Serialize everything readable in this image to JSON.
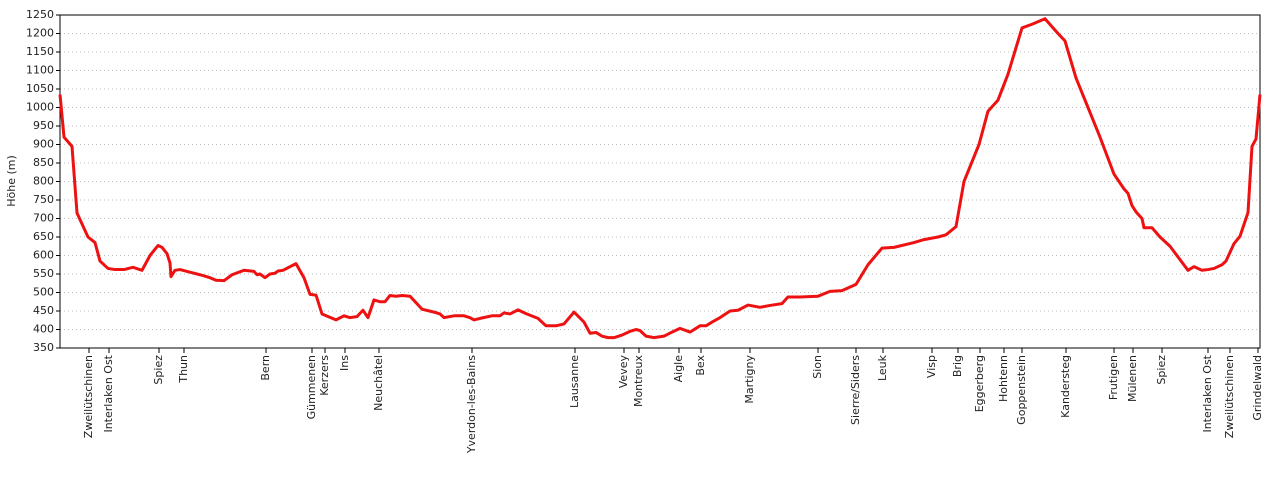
{
  "chart_data": {
    "type": "line",
    "y_label": "Höhe (m)",
    "ylim": [
      350,
      1250
    ],
    "yticks": [
      350,
      400,
      450,
      500,
      550,
      600,
      650,
      700,
      750,
      800,
      850,
      900,
      950,
      1000,
      1050,
      1100,
      1150,
      1200,
      1250
    ],
    "grid": true,
    "xlim": [
      60,
      1260
    ],
    "xticks": [
      {
        "value": 89,
        "label": "Zweilütschinen"
      },
      {
        "value": 109,
        "label": "Interlaken Ost"
      },
      {
        "value": 159,
        "label": "Spiez"
      },
      {
        "value": 184,
        "label": "Thun"
      },
      {
        "value": 266,
        "label": "Bern"
      },
      {
        "value": 312,
        "label": "Gümmenen"
      },
      {
        "value": 325,
        "label": "Kerzers"
      },
      {
        "value": 345,
        "label": "Ins"
      },
      {
        "value": 379,
        "label": "Neuchâtel"
      },
      {
        "value": 472,
        "label": "Yverdon-les-Bains"
      },
      {
        "value": 575,
        "label": "Lausanne"
      },
      {
        "value": 624,
        "label": "Vevey"
      },
      {
        "value": 639,
        "label": "Montreux"
      },
      {
        "value": 679,
        "label": "Aigle"
      },
      {
        "value": 701,
        "label": "Bex"
      },
      {
        "value": 750,
        "label": "Martigny"
      },
      {
        "value": 818,
        "label": "Sion"
      },
      {
        "value": 856,
        "label": "Sierre/Siders"
      },
      {
        "value": 883,
        "label": "Leuk"
      },
      {
        "value": 932,
        "label": "Visp"
      },
      {
        "value": 958,
        "label": "Brig"
      },
      {
        "value": 980,
        "label": "Eggerberg"
      },
      {
        "value": 1004,
        "label": "Hohtenn"
      },
      {
        "value": 1022,
        "label": "Goppenstein"
      },
      {
        "value": 1066,
        "label": "Kandersteg"
      },
      {
        "value": 1114,
        "label": "Frutigen"
      },
      {
        "value": 1133,
        "label": "Mülenen"
      },
      {
        "value": 1162,
        "label": "Spiez"
      },
      {
        "value": 1208,
        "label": "Interlaken Ost"
      },
      {
        "value": 1230,
        "label": "Zweilütschinen"
      },
      {
        "value": 1258,
        "label": "Grindelwald"
      }
    ],
    "x": [
      60,
      64,
      72,
      77,
      88,
      95,
      100,
      108,
      115,
      124,
      133,
      142,
      150,
      158,
      162,
      167,
      170,
      171,
      175,
      180,
      190,
      200,
      210,
      216,
      224,
      232,
      244,
      254,
      257,
      260,
      265,
      270,
      275,
      278,
      283,
      296,
      304,
      310,
      316,
      322,
      336,
      344,
      350,
      357,
      363,
      368,
      374,
      380,
      385,
      390,
      396,
      402,
      410,
      422,
      434,
      440,
      444,
      454,
      464,
      470,
      474,
      480,
      492,
      500,
      504,
      510,
      518,
      526,
      538,
      546,
      556,
      564,
      574,
      584,
      590,
      596,
      602,
      608,
      614,
      622,
      630,
      636,
      640,
      646,
      654,
      664,
      672,
      680,
      690,
      700,
      706,
      712,
      720,
      730,
      738,
      748,
      760,
      770,
      782,
      788,
      800,
      818,
      830,
      842,
      856,
      868,
      882,
      894,
      914,
      924,
      938,
      946,
      956,
      964,
      979,
      988,
      998,
      1008,
      1022,
      1032,
      1045,
      1058,
      1065,
      1076,
      1088,
      1100,
      1114,
      1124,
      1128,
      1132,
      1136,
      1142,
      1144,
      1152,
      1160,
      1170,
      1188,
      1194,
      1202,
      1208,
      1214,
      1222,
      1226,
      1234,
      1240,
      1248,
      1252,
      1256,
      1260
    ],
    "series": [
      {
        "color": "#ee1111",
        "values": [
          1035,
          920,
          895,
          715,
          650,
          635,
          585,
          565,
          562,
          562,
          568,
          560,
          600,
          627,
          622,
          605,
          580,
          543,
          560,
          562,
          555,
          548,
          540,
          533,
          532,
          548,
          560,
          557,
          548,
          550,
          540,
          550,
          552,
          558,
          560,
          578,
          540,
          495,
          493,
          442,
          426,
          437,
          432,
          435,
          452,
          432,
          480,
          475,
          475,
          492,
          490,
          492,
          490,
          455,
          447,
          442,
          432,
          437,
          437,
          432,
          426,
          430,
          437,
          437,
          445,
          442,
          453,
          443,
          430,
          410,
          410,
          415,
          447,
          420,
          390,
          392,
          382,
          378,
          378,
          385,
          395,
          400,
          397,
          382,
          378,
          382,
          393,
          403,
          393,
          410,
          410,
          420,
          432,
          450,
          452,
          466,
          460,
          465,
          470,
          488,
          488,
          490,
          503,
          505,
          522,
          575,
          620,
          622,
          635,
          643,
          650,
          656,
          678,
          800,
          900,
          990,
          1020,
          1090,
          1215,
          1225,
          1240,
          1200,
          1180,
          1080,
          1000,
          920,
          820,
          780,
          768,
          735,
          718,
          700,
          675,
          675,
          650,
          625,
          560,
          570,
          560,
          562,
          565,
          575,
          585,
          632,
          652,
          716,
          895,
          915,
          1035
        ]
      }
    ]
  }
}
